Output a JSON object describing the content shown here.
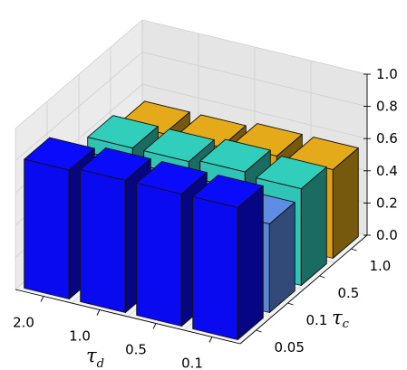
{
  "chart_data": {
    "type": "bar3d",
    "x_categories": [
      "0.1",
      "0.5",
      "1.0",
      "2.0"
    ],
    "y_categories": [
      "0.05",
      "0.1",
      "0.5",
      "1.0"
    ],
    "x_label_main": "τ",
    "x_label_sub": "d",
    "y_label_main": "τ",
    "y_label_sub": "c",
    "z_ticks": [
      "0.0",
      "0.2",
      "0.4",
      "0.6",
      "0.8",
      "1.0"
    ],
    "zlim": [
      0,
      1.0
    ],
    "grid": true,
    "series": [
      {
        "y": "0.05",
        "color": "#0a0af0",
        "values": [
          0.82,
          0.82,
          0.82,
          0.8
        ]
      },
      {
        "y": "0.1",
        "color": "#5a86da",
        "values": [
          0.55,
          0.55,
          0.55,
          0.55
        ]
      },
      {
        "y": "0.5",
        "color": "#2fc4b3",
        "values": [
          0.6,
          0.62,
          0.6,
          0.6
        ]
      },
      {
        "y": "1.0",
        "color": "#d9a218",
        "values": [
          0.55,
          0.55,
          0.52,
          0.52
        ]
      }
    ]
  }
}
